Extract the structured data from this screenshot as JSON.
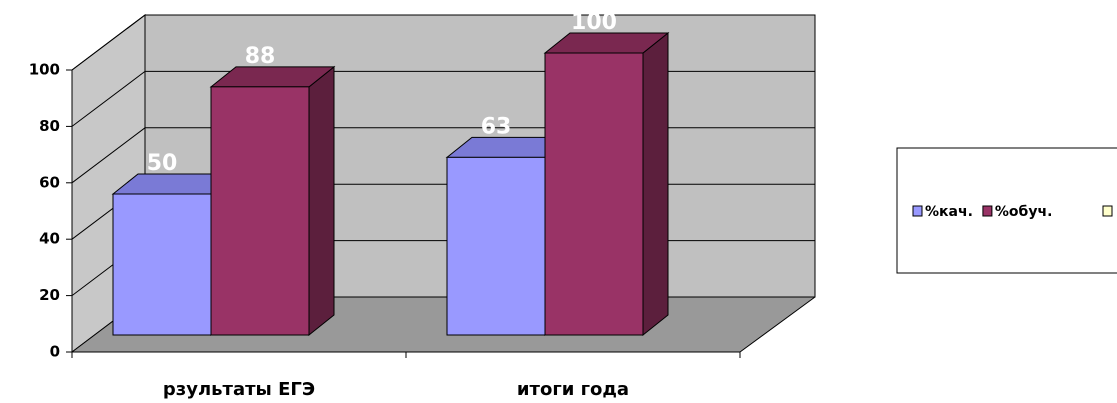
{
  "chart_data": {
    "type": "bar3d",
    "categories": [
      "рзультаты ЕГЭ",
      "итоги года"
    ],
    "series": [
      {
        "name": "%кач.",
        "color": "#9999ff",
        "side": "#5a5aa0",
        "top": "#7a7ad6",
        "values": [
          50,
          63
        ]
      },
      {
        "name": "%обуч.",
        "color": "#993366",
        "side": "#5c1f3d",
        "top": "#7a2850",
        "values": [
          88,
          100
        ]
      }
    ],
    "ylim": [
      0,
      100
    ],
    "yticks": [
      0,
      20,
      40,
      60,
      80,
      100
    ],
    "grid": true
  }
}
